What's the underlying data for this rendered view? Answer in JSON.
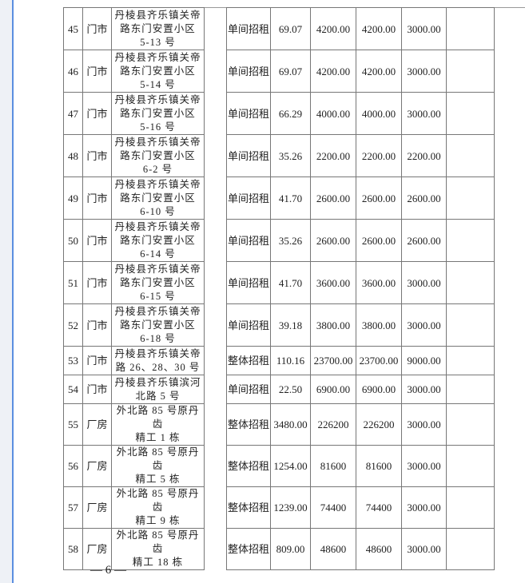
{
  "rows": [
    {
      "no": "45",
      "type": "门市",
      "address": [
        "丹棱县齐乐镇关帝",
        "路东门安置小区",
        "5-13 号"
      ],
      "method": "单间招租",
      "area": "69.07",
      "p1": "4200.00",
      "p2": "4200.00",
      "p3": "3000.00"
    },
    {
      "no": "46",
      "type": "门市",
      "address": [
        "丹棱县齐乐镇关帝",
        "路东门安置小区",
        "5-14 号"
      ],
      "method": "单间招租",
      "area": "69.07",
      "p1": "4200.00",
      "p2": "4200.00",
      "p3": "3000.00"
    },
    {
      "no": "47",
      "type": "门市",
      "address": [
        "丹棱县齐乐镇关帝",
        "路东门安置小区",
        "5-16 号"
      ],
      "method": "单间招租",
      "area": "66.29",
      "p1": "4000.00",
      "p2": "4000.00",
      "p3": "3000.00"
    },
    {
      "no": "48",
      "type": "门市",
      "address": [
        "丹棱县齐乐镇关帝",
        "路东门安置小区",
        "6-2 号"
      ],
      "method": "单间招租",
      "area": "35.26",
      "p1": "2200.00",
      "p2": "2200.00",
      "p3": "2200.00"
    },
    {
      "no": "49",
      "type": "门市",
      "address": [
        "丹棱县齐乐镇关帝",
        "路东门安置小区",
        "6-10 号"
      ],
      "method": "单间招租",
      "area": "41.70",
      "p1": "2600.00",
      "p2": "2600.00",
      "p3": "2600.00"
    },
    {
      "no": "50",
      "type": "门市",
      "address": [
        "丹棱县齐乐镇关帝",
        "路东门安置小区",
        "6-14 号"
      ],
      "method": "单间招租",
      "area": "35.26",
      "p1": "2600.00",
      "p2": "2600.00",
      "p3": "2600.00"
    },
    {
      "no": "51",
      "type": "门市",
      "address": [
        "丹棱县齐乐镇关帝",
        "路东门安置小区",
        "6-15 号"
      ],
      "method": "单间招租",
      "area": "41.70",
      "p1": "3600.00",
      "p2": "3600.00",
      "p3": "3000.00"
    },
    {
      "no": "52",
      "type": "门市",
      "address": [
        "丹棱县齐乐镇关帝",
        "路东门安置小区",
        "6-18 号"
      ],
      "method": "单间招租",
      "area": "39.18",
      "p1": "3800.00",
      "p2": "3800.00",
      "p3": "3000.00"
    },
    {
      "no": "53",
      "type": "门市",
      "address": [
        "丹棱县齐乐镇关帝",
        "路 26、28、30 号"
      ],
      "method": "整体招租",
      "area": "110.16",
      "p1": "23700.00",
      "p2": "23700.00",
      "p3": "9000.00"
    },
    {
      "no": "54",
      "type": "门市",
      "address": [
        "丹棱县齐乐镇滨河",
        "北路 5 号"
      ],
      "method": "单间招租",
      "area": "22.50",
      "p1": "6900.00",
      "p2": "6900.00",
      "p3": "3000.00"
    },
    {
      "no": "55",
      "type": "厂房",
      "address": [
        "外北路 85 号原丹齿",
        "精工 1 栋"
      ],
      "method": "整体招租",
      "area": "3480.00",
      "p1": "226200",
      "p2": "226200",
      "p3": "3000.00"
    },
    {
      "no": "56",
      "type": "厂房",
      "address": [
        "外北路 85 号原丹齿",
        "精工 5 栋"
      ],
      "method": "整体招租",
      "area": "1254.00",
      "p1": "81600",
      "p2": "81600",
      "p3": "3000.00"
    },
    {
      "no": "57",
      "type": "厂房",
      "address": [
        "外北路 85 号原丹齿",
        "精工 9 栋"
      ],
      "method": "整体招租",
      "area": "1239.00",
      "p1": "74400",
      "p2": "74400",
      "p3": "3000.00"
    },
    {
      "no": "58",
      "type": "厂房",
      "address": [
        "外北路 85 号原丹齿",
        "精工 18 栋"
      ],
      "method": "整体招租",
      "area": "809.00",
      "p1": "48600",
      "p2": "48600",
      "p3": "3000.00"
    }
  ],
  "page_number": "— 6 —"
}
